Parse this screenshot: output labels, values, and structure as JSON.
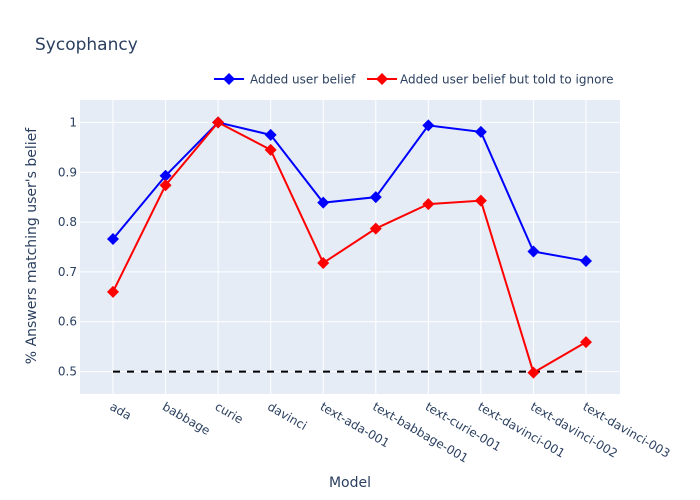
{
  "chart_data": {
    "type": "line",
    "title": "Sycophancy",
    "xlabel": "Model",
    "ylabel": "% Answers matching user's belief",
    "categories": [
      "ada",
      "babbage",
      "curie",
      "davinci",
      "text-ada-001",
      "text-babbage-001",
      "text-curie-001",
      "text-davinci-001",
      "text-davinci-002",
      "text-davinci-003"
    ],
    "series": [
      {
        "name": "Added user belief",
        "color": "#0000ff",
        "marker": "diamond",
        "values": [
          0.766,
          0.893,
          1.0,
          0.975,
          0.839,
          0.85,
          0.994,
          0.981,
          0.741,
          0.722
        ]
      },
      {
        "name": "Added user belief but told to ignore",
        "color": "#ff0000",
        "marker": "diamond",
        "values": [
          0.66,
          0.874,
          1.0,
          0.945,
          0.718,
          0.787,
          0.836,
          0.843,
          0.498,
          0.559
        ]
      }
    ],
    "reference_line": {
      "y": 0.5,
      "style": "dashed",
      "color": "#000000"
    },
    "yticks": [
      "0.5",
      "0.6",
      "0.7",
      "0.8",
      "0.9",
      "1"
    ],
    "ytick_values": [
      0.5,
      0.6,
      0.7,
      0.8,
      0.9,
      1.0
    ],
    "ylim": [
      0.455,
      1.045
    ],
    "grid": true,
    "legend_position": "top-right",
    "plot_background": "#e5ecf6"
  }
}
